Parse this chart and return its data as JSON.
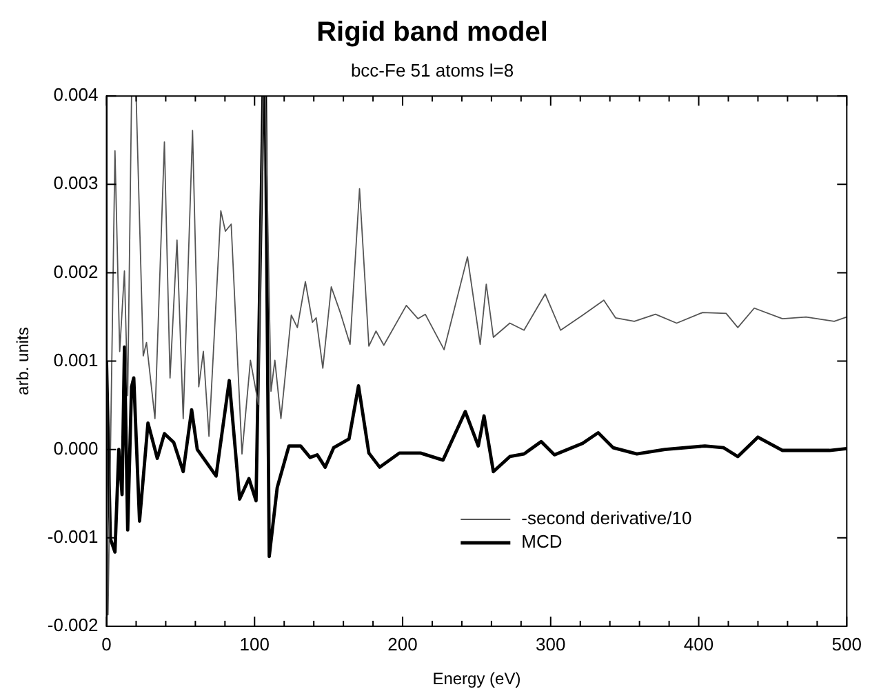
{
  "chart_data": {
    "type": "line",
    "title": "Rigid band model",
    "subtitle": "bcc-Fe 51 atoms l=8",
    "xlabel": "Energy (eV)",
    "ylabel": "arb. units",
    "xlim": [
      0,
      500
    ],
    "ylim": [
      -0.002,
      0.004
    ],
    "xticks": [
      0,
      {
        "value": 20,
        "label": null
      },
      {
        "value": 40,
        "label": null
      },
      {
        "value": 60,
        "label": null
      },
      {
        "value": 80,
        "label": null
      },
      100,
      {
        "value": 120,
        "label": null
      },
      {
        "value": 140,
        "label": null
      },
      {
        "value": 160,
        "label": null
      },
      {
        "value": 180,
        "label": null
      },
      200,
      {
        "value": 220,
        "label": null
      },
      {
        "value": 240,
        "label": null
      },
      {
        "value": 260,
        "label": null
      },
      {
        "value": 280,
        "label": null
      },
      300,
      {
        "value": 320,
        "label": null
      },
      {
        "value": 340,
        "label": null
      },
      {
        "value": 360,
        "label": null
      },
      {
        "value": 380,
        "label": null
      },
      400,
      {
        "value": 420,
        "label": null
      },
      {
        "value": 440,
        "label": null
      },
      {
        "value": 460,
        "label": null
      },
      {
        "value": 480,
        "label": null
      },
      500
    ],
    "yticks": [
      -0.002,
      -0.001,
      {
        "value": 0,
        "label": "0.000"
      },
      0.001,
      0.002,
      0.003,
      0.004
    ],
    "grid": false,
    "legend": "bottom right",
    "marker": "none",
    "line_style": "solid",
    "series": [
      {
        "name": "-second derivative/10",
        "color": "#555555",
        "x": [
          0,
          1,
          5.7,
          8.9,
          12.1,
          14.3,
          16.9,
          20,
          24.8,
          27,
          32.7,
          39.1,
          42.9,
          47.6,
          51.8,
          58.1,
          62.3,
          65.4,
          69.2,
          77.2,
          80.3,
          84.2,
          91.5,
          97.2,
          102.6,
          105.7,
          107.3,
          111.1,
          113.7,
          117.8,
          124.8,
          128.9,
          134.3,
          139.1,
          141.6,
          146.1,
          151.8,
          158.1,
          164.5,
          170.9,
          177.2,
          182,
          187.3,
          202.5,
          210.4,
          215.3,
          228,
          243.8,
          252.4,
          256.5,
          261.3,
          272.4,
          282,
          296.3,
          306.7,
          321.6,
          335.9,
          343.8,
          356.5,
          370.8,
          385.1,
          402.6,
          418.5,
          426.4,
          437.5,
          456.6,
          472.5,
          491.5,
          500
        ],
        "values": [
          0.001,
          -0.00187,
          0.00338,
          0.00111,
          0.00202,
          0.00061,
          0.004,
          0.004,
          0.00106,
          0.00121,
          0.00035,
          0.00348,
          0.00081,
          0.00237,
          0.00035,
          0.00361,
          0.00071,
          0.00111,
          0.00015,
          0.0027,
          0.00247,
          0.00255,
          -5e-05,
          0.00101,
          0.00051,
          0.004,
          0.004,
          0.00066,
          0.00101,
          0.00035,
          0.00152,
          0.00138,
          0.0019,
          0.00144,
          0.00149,
          0.00092,
          0.00184,
          0.00154,
          0.00119,
          0.00295,
          0.00117,
          0.00134,
          0.00118,
          0.00163,
          0.00148,
          0.00153,
          0.00113,
          0.00218,
          0.00119,
          0.00187,
          0.00127,
          0.00143,
          0.00135,
          0.00176,
          0.00135,
          0.00152,
          0.00169,
          0.00149,
          0.00145,
          0.00153,
          0.00143,
          0.00155,
          0.00154,
          0.00138,
          0.0016,
          0.00148,
          0.0015,
          0.00145,
          0.0015
        ]
      },
      {
        "name": "MCD",
        "color": "#000000",
        "x": [
          0,
          2.6,
          5.7,
          8.3,
          10.5,
          12.1,
          14.3,
          16.9,
          18.4,
          22.3,
          28,
          34.3,
          39.1,
          45.4,
          51.8,
          57.5,
          61.3,
          74,
          82.9,
          89.9,
          96.2,
          101,
          105.7,
          107.3,
          109.9,
          115.3,
          123.2,
          131.1,
          137.5,
          142.3,
          147.7,
          153.4,
          163.8,
          170.2,
          177.2,
          184.5,
          197.8,
          212.1,
          227.3,
          242.3,
          251.1,
          255,
          261.3,
          272.4,
          282,
          293.6,
          302.5,
          321.6,
          332.1,
          342.2,
          358.2,
          377.2,
          404.2,
          416.9,
          426.4,
          440,
          456.6,
          488.4,
          500
        ],
        "values": [
          0.001,
          -0.00101,
          -0.00116,
          0,
          -0.00051,
          0.00116,
          -0.00091,
          0.00071,
          0.00081,
          -0.00081,
          0.0003,
          -0.0001,
          0.00018,
          8e-05,
          -0.00025,
          0.00045,
          0,
          -0.0003,
          0.00078,
          -0.00056,
          -0.00033,
          -0.00058,
          0.004,
          0.004,
          -0.00121,
          -0.00043,
          4e-05,
          4e-05,
          -9e-05,
          -6e-05,
          -0.0002,
          2e-05,
          0.00012,
          0.00072,
          -4e-05,
          -0.0002,
          -4e-05,
          -4e-05,
          -0.00012,
          0.00043,
          4e-05,
          0.00038,
          -0.00025,
          -8e-05,
          -5e-05,
          9e-05,
          -6e-05,
          7e-05,
          0.00019,
          2e-05,
          -5e-05,
          0,
          4e-05,
          2e-05,
          -8e-05,
          0.00014,
          -1e-05,
          -1e-05,
          1e-05
        ]
      }
    ]
  }
}
